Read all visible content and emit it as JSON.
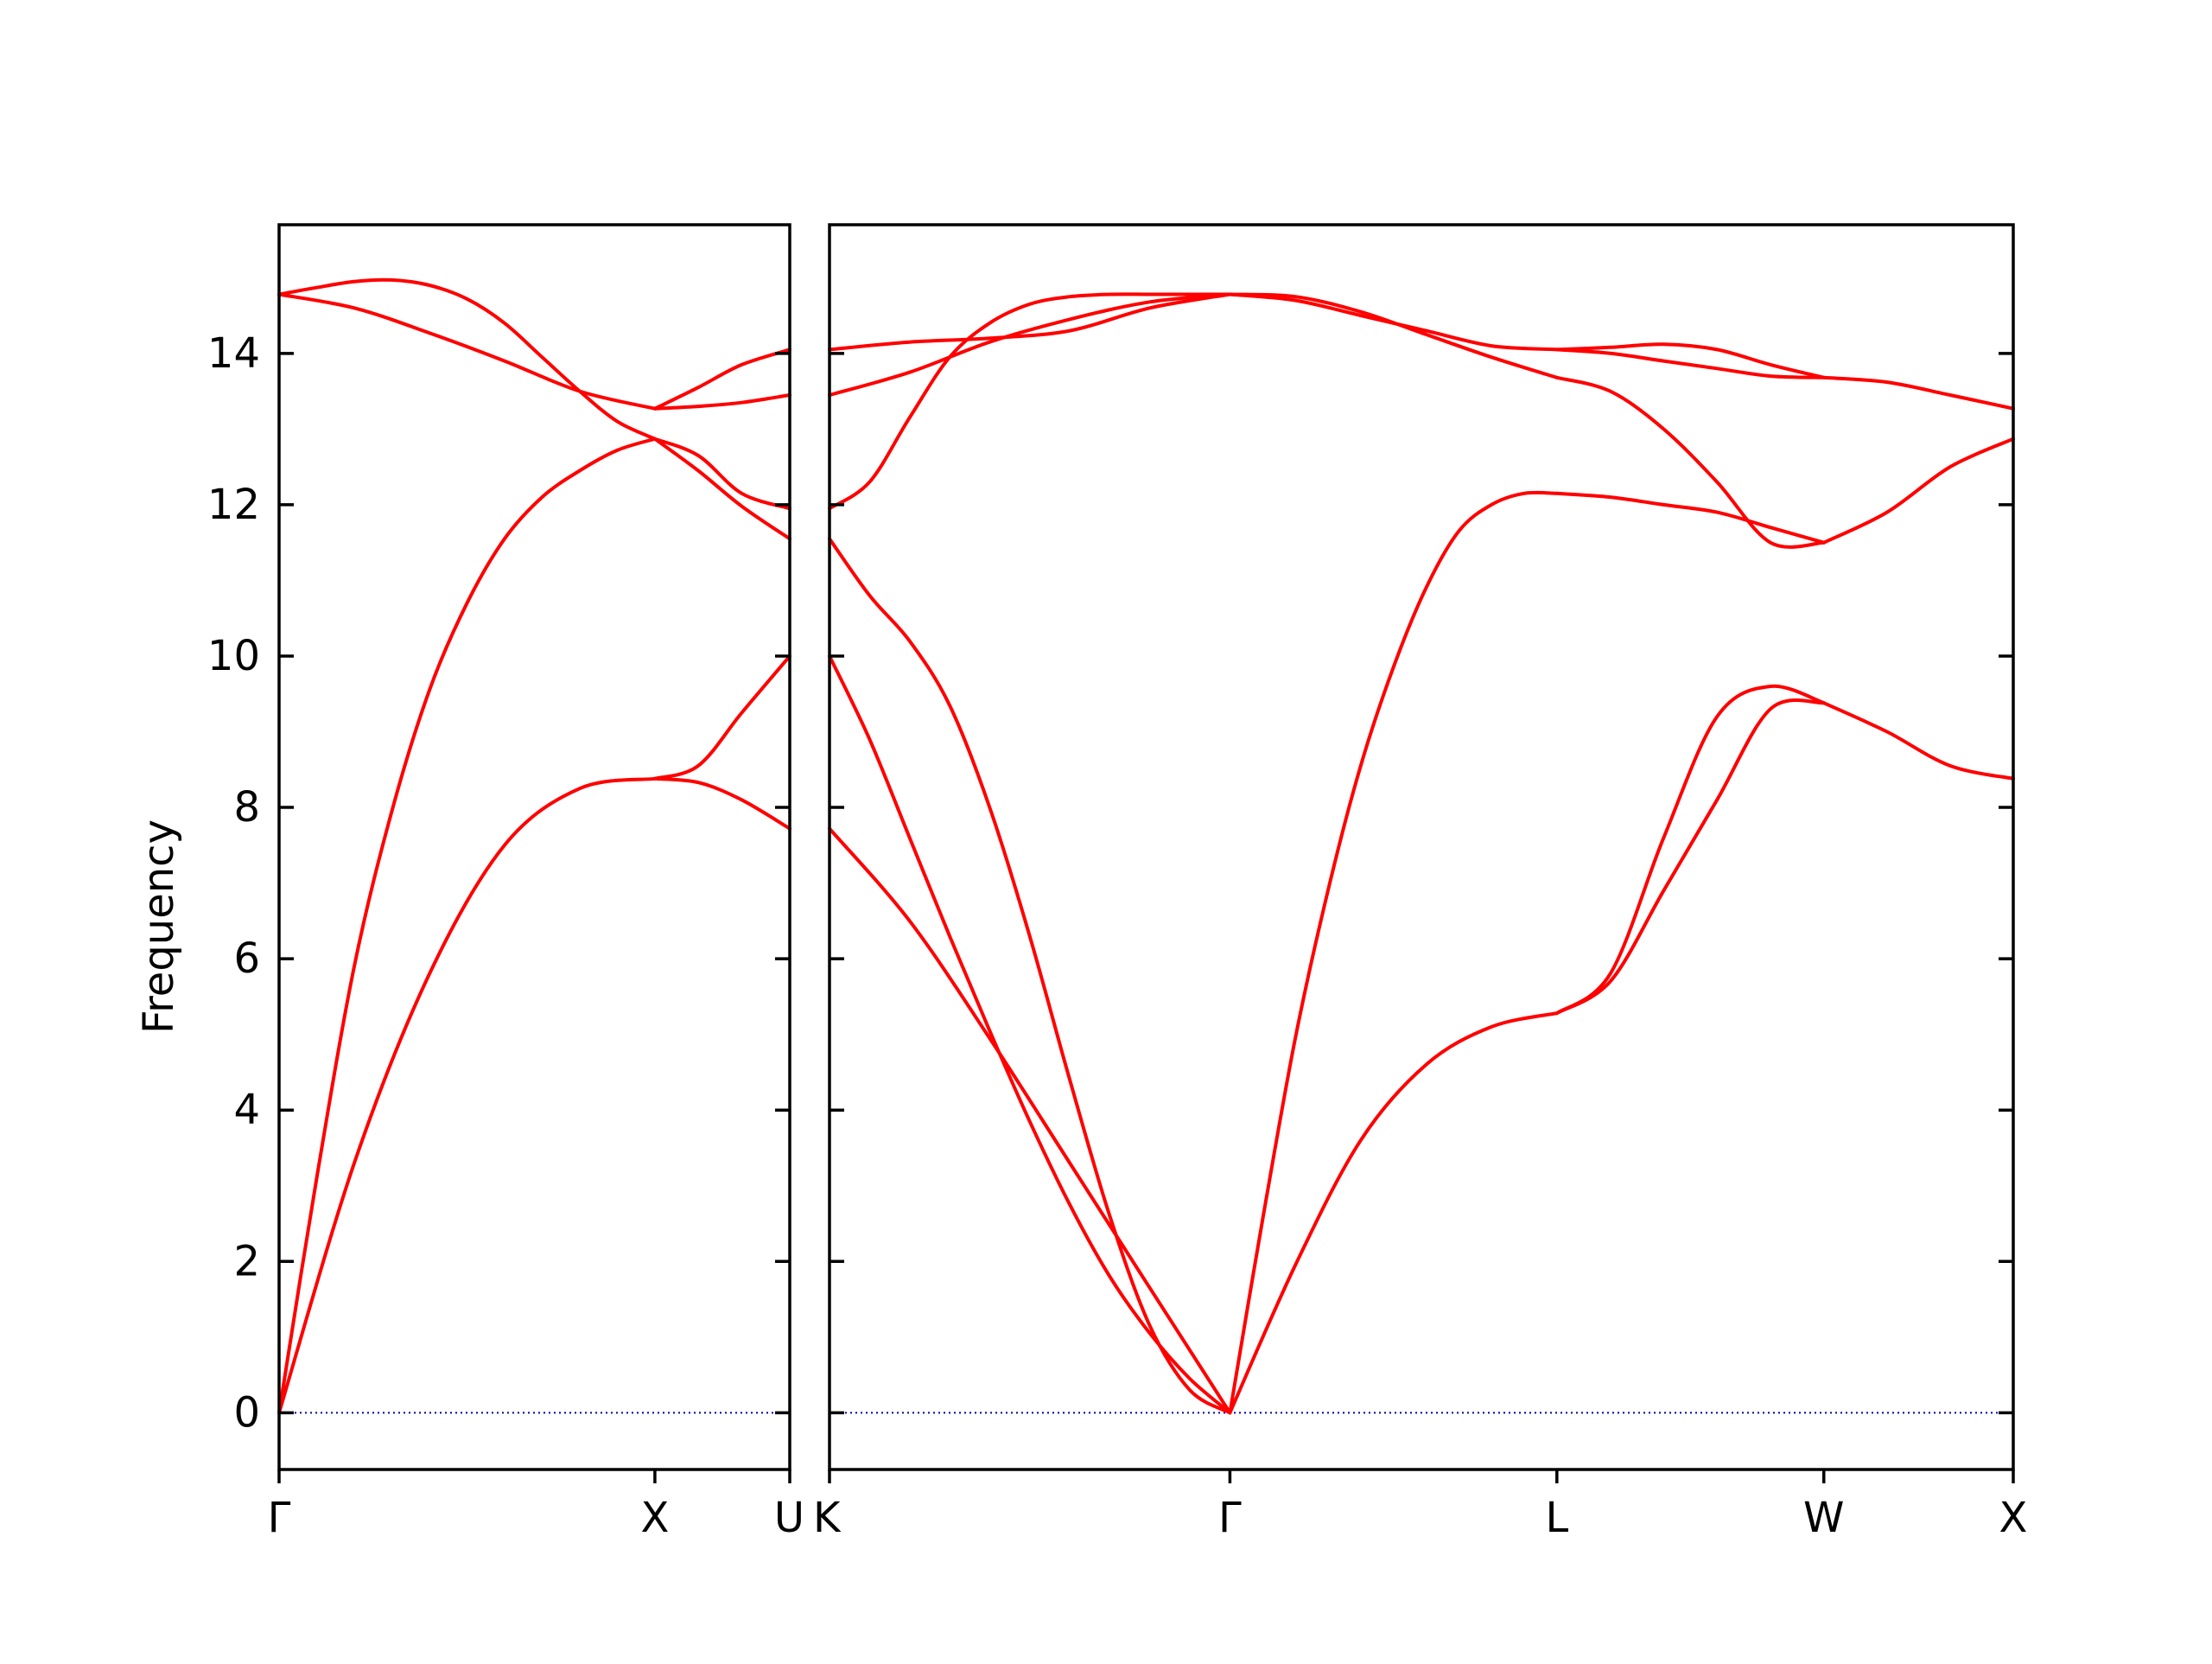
{
  "chart_data": {
    "type": "line",
    "ylabel": "Frequency",
    "ylim": [
      -0.75,
      15.7
    ],
    "yticks": [
      0,
      2,
      4,
      6,
      8,
      10,
      12,
      14
    ],
    "line_color": "#ff0000",
    "zero_line_color": "#0000aa",
    "panels": [
      {
        "x_range": [
          0,
          1.1768
        ],
        "ticks": [
          {
            "x": 0,
            "label": "Γ"
          },
          {
            "x": 0.866,
            "label": "X"
          },
          {
            "x": 1.1768,
            "label": "U"
          }
        ],
        "segments": [
          {
            "x_start": 0,
            "x_end": 0.866,
            "series": [
              {
                "x": [
                  0,
                  0.1732,
                  0.3464,
                  0.5196,
                  0.6928,
                  0.866
                ],
                "values": [
                  0,
                  3.3,
                  5.8,
                  7.5,
                  8.25,
                  8.38
                ]
              },
              {
                "x": [
                  0,
                  0.0866,
                  0.1732,
                  0.2598,
                  0.3464,
                  0.433,
                  0.5196,
                  0.6062,
                  0.6928,
                  0.7794,
                  0.866
                ],
                "values": [
                  0,
                  3.1,
                  5.9,
                  7.95,
                  9.55,
                  10.7,
                  11.55,
                  12.1,
                  12.45,
                  12.72,
                  12.87
                ]
              },
              {
                "x": [
                  0,
                  0.1732,
                  0.3464,
                  0.5196,
                  0.6928,
                  0.866
                ],
                "values": [
                  14.78,
                  14.6,
                  14.27,
                  13.9,
                  13.5,
                  13.27
                ]
              },
              {
                "x": [
                  0,
                  0.0866,
                  0.1732,
                  0.2598,
                  0.3464,
                  0.433,
                  0.5196,
                  0.6062,
                  0.6928,
                  0.7794,
                  0.866
                ],
                "values": [
                  14.78,
                  14.87,
                  14.95,
                  14.97,
                  14.9,
                  14.72,
                  14.4,
                  13.95,
                  13.5,
                  13.1,
                  12.87
                ]
              }
            ]
          },
          {
            "x_start": 0.866,
            "x_end": 1.1768,
            "series": [
              {
                "x": [
                  0.866,
                  0.966,
                  1.066,
                  1.1768
                ],
                "values": [
                  8.38,
                  8.55,
                  9.25,
                  10.0
                ]
              },
              {
                "x": [
                  0.866,
                  0.966,
                  1.066,
                  1.1768
                ],
                "values": [
                  8.38,
                  8.33,
                  8.1,
                  7.72
                ]
              },
              {
                "x": [
                  0.866,
                  0.966,
                  1.066,
                  1.1768
                ],
                "values": [
                  12.87,
                  12.65,
                  12.15,
                  11.95
                ]
              },
              {
                "x": [
                  0.866,
                  0.966,
                  1.066,
                  1.1768
                ],
                "values": [
                  12.87,
                  12.45,
                  11.98,
                  11.55
                ]
              },
              {
                "x": [
                  0.866,
                  0.966,
                  1.066,
                  1.1768
                ],
                "values": [
                  13.27,
                  13.3,
                  13.35,
                  13.45
                ]
              },
              {
                "x": [
                  0.866,
                  0.966,
                  1.066,
                  1.1768
                ],
                "values": [
                  13.27,
                  13.55,
                  13.85,
                  14.05
                ]
              }
            ]
          }
        ]
      },
      {
        "x_range": [
          0,
          2.7157
        ],
        "ticks": [
          {
            "x": 0,
            "label": "K"
          },
          {
            "x": 0.9186,
            "label": "Γ"
          },
          {
            "x": 1.6687,
            "label": "L"
          },
          {
            "x": 2.2811,
            "label": "W"
          },
          {
            "x": 2.7157,
            "label": "X"
          }
        ],
        "segments": [
          {
            "x_start": 0,
            "x_end": 0.9186,
            "series": [
              {
                "x": [
                  0,
                  0.1837,
                  0.3674,
                  0.5512,
                  0.7349,
                  0.9186
                ],
                "values": [
                  7.72,
                  6.5,
                  4.95,
                  3.3,
                  1.65,
                  0
                ]
              },
              {
                "x": [
                  0,
                  0.0919,
                  0.1837,
                  0.2756,
                  0.3674,
                  0.4593,
                  0.5512,
                  0.643,
                  0.7349,
                  0.8267,
                  0.9186
                ],
                "values": [
                  10.0,
                  8.9,
                  7.6,
                  6.3,
                  5.05,
                  3.85,
                  2.75,
                  1.8,
                  1.05,
                  0.45,
                  0
                ]
              },
              {
                "x": [
                  0,
                  0.0919,
                  0.1837,
                  0.2756,
                  0.3674,
                  0.4593,
                  0.5512,
                  0.643,
                  0.7349,
                  0.8267,
                  0.9186
                ],
                "values": [
                  11.55,
                  10.8,
                  10.2,
                  9.35,
                  8.0,
                  6.3,
                  4.4,
                  2.6,
                  1.15,
                  0.3,
                  0
                ]
              },
              {
                "x": [
                  0,
                  0.0919,
                  0.1837,
                  0.2756,
                  0.3674,
                  0.4593,
                  0.5512,
                  0.643,
                  0.7349,
                  0.8267,
                  0.9186
                ],
                "values": [
                  11.95,
                  12.3,
                  13.15,
                  13.95,
                  14.4,
                  14.65,
                  14.75,
                  14.78,
                  14.78,
                  14.78,
                  14.78
                ]
              },
              {
                "x": [
                  0,
                  0.1837,
                  0.3674,
                  0.5512,
                  0.7349,
                  0.9186
                ],
                "values": [
                  13.45,
                  13.75,
                  14.15,
                  14.45,
                  14.68,
                  14.78
                ]
              },
              {
                "x": [
                  0,
                  0.1837,
                  0.3674,
                  0.5512,
                  0.7349,
                  0.9186
                ],
                "values": [
                  14.05,
                  14.15,
                  14.2,
                  14.3,
                  14.6,
                  14.78
                ]
              }
            ]
          },
          {
            "x_start": 0.9186,
            "x_end": 1.6687,
            "series": [
              {
                "x": [
                  0.9186,
                  1.0686,
                  1.2186,
                  1.3686,
                  1.5186,
                  1.6687
                ],
                "values": [
                  0,
                  1.95,
                  3.6,
                  4.6,
                  5.1,
                  5.28
                ]
              },
              {
                "x": [
                  0.9186,
                  0.9936,
                  1.0686,
                  1.1436,
                  1.2186,
                  1.2936,
                  1.3686,
                  1.4436,
                  1.5186,
                  1.5936,
                  1.6687
                ],
                "values": [
                  0,
                  2.55,
                  4.95,
                  6.9,
                  8.55,
                  9.85,
                  10.9,
                  11.65,
                  12.0,
                  12.15,
                  12.15
                ]
              },
              {
                "x": [
                  0.9186,
                  1.0686,
                  1.2186,
                  1.3686,
                  1.5186,
                  1.6687
                ],
                "values": [
                  14.78,
                  14.75,
                  14.55,
                  14.25,
                  13.95,
                  13.68
                ]
              },
              {
                "x": [
                  0.9186,
                  1.0686,
                  1.2186,
                  1.3686,
                  1.5186,
                  1.6687
                ],
                "values": [
                  14.78,
                  14.7,
                  14.5,
                  14.3,
                  14.1,
                  14.05
                ]
              }
            ]
          },
          {
            "x_start": 1.6687,
            "x_end": 2.2811,
            "series": [
              {
                "x": [
                  1.6687,
                  1.7912,
                  1.9136,
                  2.0361,
                  2.1586,
                  2.2811
                ],
                "values": [
                  5.28,
                  5.7,
                  6.9,
                  8.1,
                  9.3,
                  9.38
                ]
              },
              {
                "x": [
                  1.6687,
                  1.7912,
                  1.9136,
                  2.0361,
                  2.1586,
                  2.2811
                ],
                "values": [
                  5.28,
                  5.8,
                  7.6,
                  9.2,
                  9.6,
                  9.38
                ]
              },
              {
                "x": [
                  1.6687,
                  1.7912,
                  1.9136,
                  2.0361,
                  2.1586,
                  2.2811
                ],
                "values": [
                  12.15,
                  12.1,
                  12.0,
                  11.9,
                  11.7,
                  11.5
                ]
              },
              {
                "x": [
                  1.6687,
                  1.7912,
                  1.9136,
                  2.0361,
                  2.1586,
                  2.2811
                ],
                "values": [
                  13.68,
                  13.5,
                  13.0,
                  12.3,
                  11.5,
                  11.5
                ]
              },
              {
                "x": [
                  1.6687,
                  1.7912,
                  1.9136,
                  2.0361,
                  2.1586,
                  2.2811
                ],
                "values": [
                  14.05,
                  14.0,
                  13.9,
                  13.8,
                  13.7,
                  13.68
                ]
              },
              {
                "x": [
                  1.6687,
                  1.7912,
                  1.9136,
                  2.0361,
                  2.1586,
                  2.2811
                ],
                "values": [
                  14.05,
                  14.08,
                  14.12,
                  14.05,
                  13.85,
                  13.68
                ]
              }
            ]
          },
          {
            "x_start": 2.2811,
            "x_end": 2.7157,
            "series": [
              {
                "x": [
                  2.2811,
                  2.426,
                  2.5708,
                  2.7157
                ],
                "values": [
                  9.38,
                  9.0,
                  8.55,
                  8.38
                ]
              },
              {
                "x": [
                  2.2811,
                  2.426,
                  2.5708,
                  2.7157
                ],
                "values": [
                  11.5,
                  11.9,
                  12.5,
                  12.87
                ]
              },
              {
                "x": [
                  2.2811,
                  2.426,
                  2.5708,
                  2.7157
                ],
                "values": [
                  13.68,
                  13.62,
                  13.45,
                  13.27
                ]
              }
            ]
          }
        ]
      }
    ]
  }
}
